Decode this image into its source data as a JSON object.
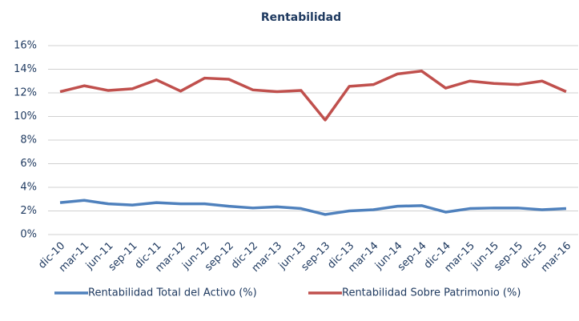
{
  "chart_data": {
    "type": "line",
    "title": "Rentabilidad",
    "categories": [
      "dic-10",
      "mar-11",
      "jun-11",
      "sep-11",
      "dic-11",
      "mar-12",
      "jun-12",
      "sep-12",
      "dic-12",
      "mar-13",
      "jun-13",
      "sep-13",
      "dic-13",
      "mar-14",
      "jun-14",
      "sep-14",
      "dic-14",
      "mar-15",
      "jun-15",
      "sep-15",
      "dic-15",
      "mar-16"
    ],
    "series": [
      {
        "name": "Rentabilidad Total del Activo (%)",
        "color": "#4f81bd",
        "values": [
          2.7,
          2.9,
          2.6,
          2.5,
          2.7,
          2.6,
          2.6,
          2.4,
          2.25,
          2.35,
          2.2,
          1.7,
          2.0,
          2.1,
          2.4,
          2.45,
          1.9,
          2.2,
          2.25,
          2.25,
          2.1,
          2.2
        ]
      },
      {
        "name": "Rentabilidad Sobre Patrimonio (%)",
        "color": "#c0504d",
        "values": [
          12.1,
          12.6,
          12.2,
          12.35,
          13.1,
          12.15,
          13.25,
          13.15,
          12.25,
          12.1,
          12.2,
          9.7,
          12.55,
          12.7,
          13.6,
          13.85,
          12.4,
          13.0,
          12.8,
          12.7,
          13.0,
          12.1
        ]
      }
    ],
    "ylim": [
      0,
      16
    ],
    "yticks": [
      {
        "value": 0,
        "label": "0%"
      },
      {
        "value": 2,
        "label": "2%"
      },
      {
        "value": 4,
        "label": "4%"
      },
      {
        "value": 6,
        "label": "6%"
      },
      {
        "value": 8,
        "label": "8%"
      },
      {
        "value": 10,
        "label": "10%"
      },
      {
        "value": 12,
        "label": "12%"
      },
      {
        "value": 14,
        "label": "14%"
      },
      {
        "value": 16,
        "label": "16%"
      }
    ],
    "grid": true,
    "legend": "bottom"
  }
}
